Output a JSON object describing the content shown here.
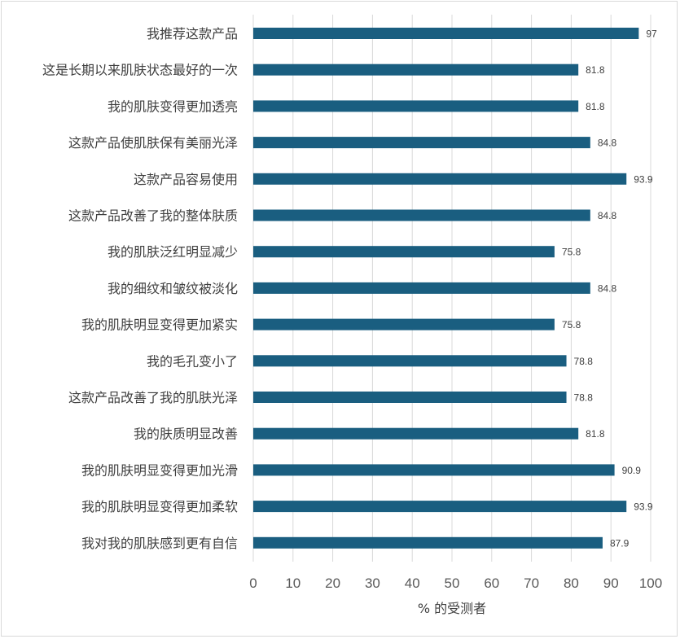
{
  "chart_data": {
    "type": "bar",
    "orientation": "horizontal",
    "categories": [
      "我推荐这款产品",
      "这是长期以来肌肤状态最好的一次",
      "我的肌肤变得更加透亮",
      "这款产品使肌肤保有美丽光泽",
      "这款产品容易使用",
      "这款产品改善了我的整体肤质",
      "我的肌肤泛红明显减少",
      "我的细纹和皱纹被淡化",
      "我的肌肤明显变得更加紧实",
      "我的毛孔变小了",
      "这款产品改善了我的肌肤光泽",
      "我的肤质明显改善",
      "我的肌肤明显变得更加光滑",
      "我的肌肤明显变得更加柔软",
      "我对我的肌肤感到更有自信"
    ],
    "values": [
      97,
      81.8,
      81.8,
      84.8,
      93.9,
      84.8,
      75.8,
      84.8,
      75.8,
      78.8,
      78.8,
      81.8,
      90.9,
      93.9,
      87.9
    ],
    "value_labels": [
      "97",
      "81.8",
      "81.8",
      "84.8",
      "93.9",
      "84.8",
      "75.8",
      "84.8",
      "75.8",
      "78.8",
      "78.8",
      "81.8",
      "90.9",
      "93.9",
      "87.9"
    ],
    "xlabel": "% 的受测者",
    "ylabel": "",
    "xlim": [
      0,
      100
    ],
    "xticks": [
      "0",
      "10",
      "20",
      "30",
      "40",
      "50",
      "60",
      "70",
      "80",
      "90",
      "100"
    ],
    "grid": true,
    "legend": "none",
    "bar_color": "#1a5e80"
  }
}
